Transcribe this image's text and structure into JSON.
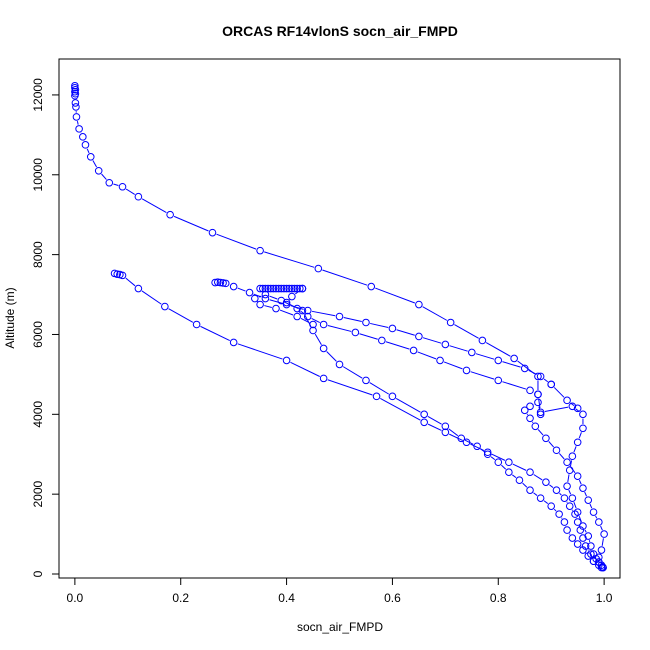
{
  "chart_data": {
    "type": "line",
    "title": "ORCAS RF14vlonS socn_air_FMPD",
    "xlabel": "socn_air_FMPD",
    "ylabel": "Altitude (m)",
    "xlim": [
      -0.03,
      1.03
    ],
    "ylim": [
      -100,
      12900
    ],
    "xticks": [
      0.0,
      0.2,
      0.4,
      0.6,
      0.8,
      1.0
    ],
    "xtick_labels": [
      "0.0",
      "0.2",
      "0.4",
      "0.6",
      "0.8",
      "1.0"
    ],
    "yticks": [
      0,
      2000,
      4000,
      6000,
      8000,
      10000,
      12000
    ],
    "ytick_labels": [
      "0",
      "2000",
      "4000",
      "6000",
      "8000",
      "10000",
      "12000"
    ],
    "grid": false,
    "color": "#0000ff",
    "series": [
      {
        "x": [
          0.0,
          0.0,
          0.001,
          0.0,
          0.001,
          0.0,
          0.001,
          0.002,
          0.003,
          0.008,
          0.015,
          0.02,
          0.03,
          0.045,
          0.065,
          0.09,
          0.12,
          0.18,
          0.26,
          0.35,
          0.46,
          0.56,
          0.65,
          0.71,
          0.77,
          0.83,
          0.875,
          0.875
        ],
        "y": [
          12230,
          12180,
          12130,
          12080,
          12030,
          11980,
          11800,
          11700,
          11450,
          11150,
          10950,
          10750,
          10450,
          10100,
          9800,
          9700,
          9450,
          9000,
          8550,
          8100,
          7650,
          7200,
          6750,
          6300,
          5850,
          5400,
          4950,
          4500
        ]
      },
      {
        "x": [
          0.875,
          0.88,
          0.94,
          0.96,
          0.96,
          0.95,
          0.94,
          0.935,
          0.93,
          0.94,
          0.95,
          0.96,
          0.97,
          0.975,
          0.98,
          0.985,
          0.99,
          0.995,
          0.997,
          0.998
        ],
        "y": [
          4500,
          4050,
          4200,
          4000,
          3650,
          3300,
          2950,
          2600,
          2200,
          1900,
          1550,
          1200,
          950,
          700,
          500,
          380,
          300,
          220,
          180,
          160
        ]
      },
      {
        "x": [
          0.998,
          0.99,
          0.975,
          0.965,
          0.96,
          0.955,
          0.95,
          0.945,
          0.935,
          0.925,
          0.91,
          0.89,
          0.86,
          0.82,
          0.78,
          0.74,
          0.7,
          0.66,
          0.57,
          0.47,
          0.4,
          0.3,
          0.23,
          0.17,
          0.12,
          0.09,
          0.085,
          0.08,
          0.075
        ],
        "y": [
          160,
          300,
          500,
          700,
          900,
          1100,
          1300,
          1500,
          1700,
          1900,
          2100,
          2300,
          2550,
          2800,
          3050,
          3300,
          3550,
          3800,
          4450,
          4900,
          5350,
          5800,
          6250,
          6700,
          7150,
          7480,
          7500,
          7510,
          7530
        ]
      },
      {
        "x": [
          0.265,
          0.27,
          0.275,
          0.28,
          0.285,
          0.3,
          0.33,
          0.36,
          0.4,
          0.44,
          0.5,
          0.55,
          0.6,
          0.65,
          0.7,
          0.75,
          0.8,
          0.85,
          0.88,
          0.9
        ],
        "y": [
          7300,
          7310,
          7300,
          7290,
          7280,
          7200,
          7050,
          6900,
          6750,
          6600,
          6450,
          6300,
          6150,
          5950,
          5750,
          5550,
          5350,
          5150,
          4950,
          4750
        ]
      },
      {
        "x": [
          0.9,
          0.93,
          0.95
        ],
        "y": [
          4750,
          4350,
          4150
        ]
      },
      {
        "x": [
          0.35,
          0.355,
          0.36,
          0.365,
          0.37,
          0.375,
          0.38,
          0.385,
          0.39,
          0.395,
          0.4,
          0.405,
          0.41,
          0.415,
          0.42,
          0.425,
          0.43
        ],
        "y": [
          7150,
          7150,
          7150,
          7150,
          7150,
          7150,
          7150,
          7150,
          7150,
          7150,
          7150,
          7150,
          7150,
          7150,
          7150,
          7150,
          7150
        ]
      },
      {
        "x": [
          0.43,
          0.41,
          0.4,
          0.42,
          0.44,
          0.47,
          0.53,
          0.58,
          0.64,
          0.69,
          0.74,
          0.8,
          0.86
        ],
        "y": [
          7150,
          6950,
          6800,
          6650,
          6450,
          6250,
          6050,
          5850,
          5600,
          5350,
          5100,
          4850,
          4600
        ]
      },
      {
        "x": [
          0.45,
          0.42,
          0.38,
          0.35,
          0.34,
          0.36,
          0.39,
          0.43,
          0.45,
          0.47,
          0.5,
          0.55,
          0.6,
          0.66,
          0.7,
          0.73,
          0.76,
          0.78,
          0.8,
          0.82,
          0.84,
          0.86,
          0.88,
          0.9,
          0.915,
          0.925,
          0.93,
          0.94,
          0.95,
          0.96,
          0.97,
          0.98,
          0.99,
          0.995
        ],
        "y": [
          6250,
          6450,
          6650,
          6750,
          6900,
          7000,
          6850,
          6600,
          6100,
          5650,
          5250,
          4850,
          4450,
          4000,
          3700,
          3400,
          3200,
          3000,
          2800,
          2550,
          2350,
          2100,
          1900,
          1700,
          1500,
          1300,
          1100,
          900,
          750,
          600,
          450,
          320,
          220,
          160
        ]
      },
      {
        "x": [
          0.98,
          0.99,
          0.995,
          1.0,
          0.99,
          0.98,
          0.97,
          0.96,
          0.95,
          0.93,
          0.91,
          0.89,
          0.87,
          0.86,
          0.85,
          0.86,
          0.875,
          0.88
        ],
        "y": [
          320,
          420,
          600,
          1000,
          1300,
          1550,
          1850,
          2150,
          2450,
          2800,
          3100,
          3400,
          3700,
          3900,
          4100,
          4200,
          4300,
          4000
        ]
      }
    ]
  }
}
